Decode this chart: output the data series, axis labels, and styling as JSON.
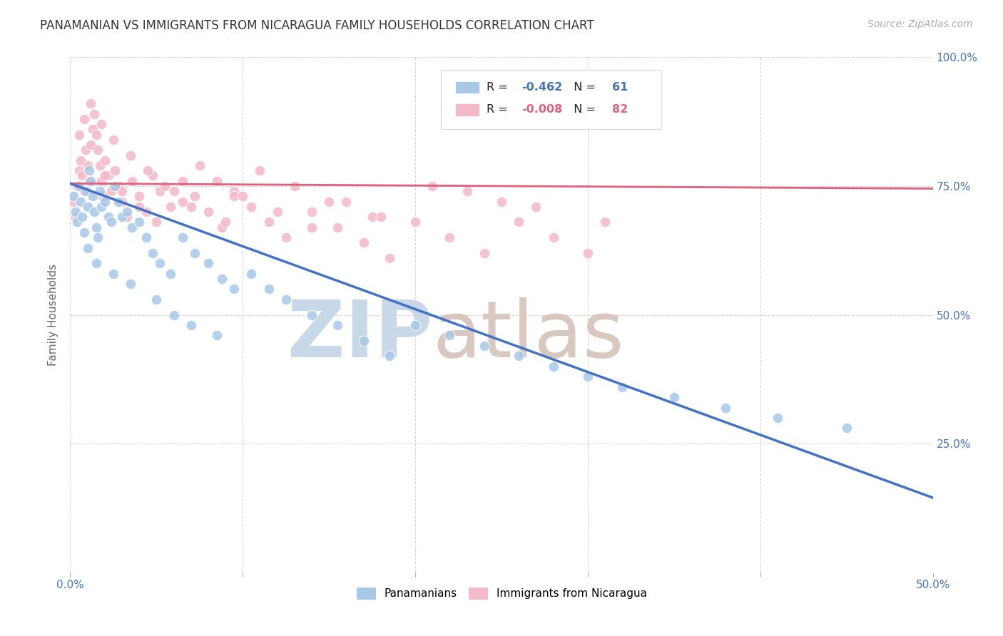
{
  "title": "PANAMANIAN VS IMMIGRANTS FROM NICARAGUA FAMILY HOUSEHOLDS CORRELATION CHART",
  "source": "Source: ZipAtlas.com",
  "ylabel": "Family Households",
  "x_min": 0.0,
  "x_max": 0.5,
  "y_min": 0.0,
  "y_max": 1.0,
  "x_ticks": [
    0.0,
    0.1,
    0.2,
    0.3,
    0.4,
    0.5
  ],
  "x_tick_labels": [
    "0.0%",
    "",
    "",
    "",
    "",
    "50.0%"
  ],
  "y_ticks": [
    0.0,
    0.25,
    0.5,
    0.75,
    1.0
  ],
  "y_tick_labels_right": [
    "",
    "25.0%",
    "50.0%",
    "75.0%",
    "100.0%"
  ],
  "blue_R": -0.462,
  "blue_N": 61,
  "pink_R": -0.008,
  "pink_N": 82,
  "blue_color": "#a8c8e8",
  "pink_color": "#f4b8c8",
  "blue_line_color": "#4472c4",
  "pink_line_color": "#e06080",
  "legend_label_blue": "Panamanians",
  "legend_label_pink": "Immigrants from Nicaragua",
  "blue_scatter_x": [
    0.002,
    0.003,
    0.004,
    0.005,
    0.006,
    0.007,
    0.008,
    0.009,
    0.01,
    0.011,
    0.012,
    0.013,
    0.014,
    0.015,
    0.016,
    0.017,
    0.018,
    0.02,
    0.022,
    0.024,
    0.026,
    0.028,
    0.03,
    0.033,
    0.036,
    0.04,
    0.044,
    0.048,
    0.052,
    0.058,
    0.065,
    0.072,
    0.08,
    0.088,
    0.095,
    0.105,
    0.115,
    0.125,
    0.14,
    0.155,
    0.17,
    0.185,
    0.2,
    0.22,
    0.24,
    0.26,
    0.28,
    0.3,
    0.32,
    0.35,
    0.38,
    0.41,
    0.45,
    0.01,
    0.015,
    0.025,
    0.035,
    0.05,
    0.06,
    0.07,
    0.085
  ],
  "blue_scatter_y": [
    0.73,
    0.7,
    0.68,
    0.75,
    0.72,
    0.69,
    0.66,
    0.74,
    0.71,
    0.78,
    0.76,
    0.73,
    0.7,
    0.67,
    0.65,
    0.74,
    0.71,
    0.72,
    0.69,
    0.68,
    0.75,
    0.72,
    0.69,
    0.7,
    0.67,
    0.68,
    0.65,
    0.62,
    0.6,
    0.58,
    0.65,
    0.62,
    0.6,
    0.57,
    0.55,
    0.58,
    0.55,
    0.53,
    0.5,
    0.48,
    0.45,
    0.42,
    0.48,
    0.46,
    0.44,
    0.42,
    0.4,
    0.38,
    0.36,
    0.34,
    0.32,
    0.3,
    0.28,
    0.63,
    0.6,
    0.58,
    0.56,
    0.53,
    0.5,
    0.48,
    0.46
  ],
  "pink_scatter_x": [
    0.002,
    0.003,
    0.004,
    0.005,
    0.006,
    0.007,
    0.008,
    0.009,
    0.01,
    0.011,
    0.012,
    0.013,
    0.014,
    0.015,
    0.016,
    0.017,
    0.018,
    0.019,
    0.02,
    0.022,
    0.024,
    0.026,
    0.028,
    0.03,
    0.033,
    0.036,
    0.04,
    0.044,
    0.048,
    0.052,
    0.058,
    0.065,
    0.072,
    0.08,
    0.088,
    0.095,
    0.105,
    0.115,
    0.125,
    0.14,
    0.155,
    0.17,
    0.185,
    0.2,
    0.22,
    0.24,
    0.26,
    0.28,
    0.3,
    0.005,
    0.008,
    0.012,
    0.018,
    0.025,
    0.035,
    0.045,
    0.055,
    0.065,
    0.075,
    0.085,
    0.095,
    0.11,
    0.13,
    0.15,
    0.175,
    0.21,
    0.25,
    0.02,
    0.03,
    0.04,
    0.05,
    0.06,
    0.07,
    0.09,
    0.1,
    0.12,
    0.14,
    0.16,
    0.18,
    0.23,
    0.27,
    0.31
  ],
  "pink_scatter_y": [
    0.72,
    0.69,
    0.75,
    0.78,
    0.8,
    0.77,
    0.74,
    0.82,
    0.79,
    0.76,
    0.83,
    0.86,
    0.89,
    0.85,
    0.82,
    0.79,
    0.76,
    0.73,
    0.8,
    0.77,
    0.74,
    0.78,
    0.75,
    0.72,
    0.69,
    0.76,
    0.73,
    0.7,
    0.77,
    0.74,
    0.71,
    0.76,
    0.73,
    0.7,
    0.67,
    0.74,
    0.71,
    0.68,
    0.65,
    0.7,
    0.67,
    0.64,
    0.61,
    0.68,
    0.65,
    0.62,
    0.68,
    0.65,
    0.62,
    0.85,
    0.88,
    0.91,
    0.87,
    0.84,
    0.81,
    0.78,
    0.75,
    0.72,
    0.79,
    0.76,
    0.73,
    0.78,
    0.75,
    0.72,
    0.69,
    0.75,
    0.72,
    0.77,
    0.74,
    0.71,
    0.68,
    0.74,
    0.71,
    0.68,
    0.73,
    0.7,
    0.67,
    0.72,
    0.69,
    0.74,
    0.71,
    0.68
  ],
  "blue_trend_x": [
    0.0,
    0.5
  ],
  "blue_trend_y": [
    0.755,
    0.145
  ],
  "pink_trend_x": [
    0.0,
    0.5
  ],
  "pink_trend_y": [
    0.755,
    0.745
  ],
  "background_color": "#ffffff",
  "grid_color": "#cccccc",
  "title_color": "#333333",
  "axis_label_color": "#4472c4",
  "watermark_color_zip": "#c8d8e8",
  "watermark_color_atlas": "#d8c8c0"
}
